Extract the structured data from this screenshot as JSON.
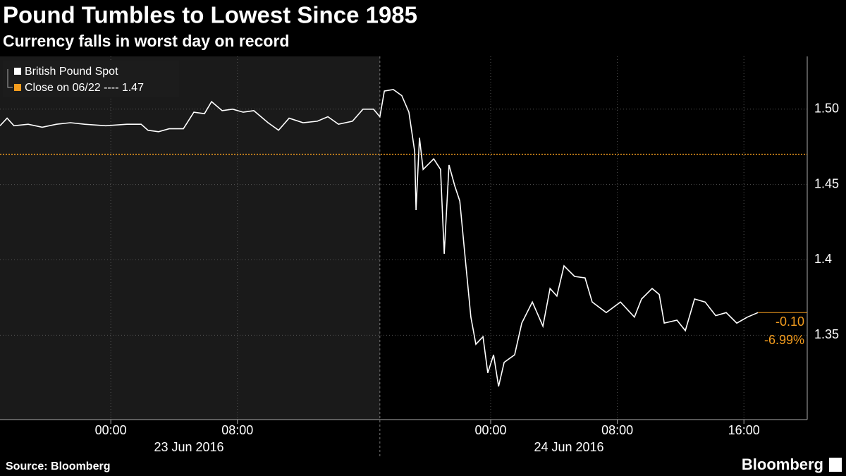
{
  "chart_data": {
    "type": "line",
    "title": "Pound Tumbles to Lowest Since 1985",
    "subtitle": "Currency falls in worst day on record",
    "source": "Source: Bloomberg",
    "brand": "Bloomberg",
    "series": [
      {
        "name": "British Pound Spot",
        "color": "#ffffff",
        "x": [
          "2016-06-22T17:00",
          "2016-06-22T17:27",
          "2016-06-22T17:53",
          "2016-06-22T18:47",
          "2016-06-22T19:40",
          "2016-06-22T20:34",
          "2016-06-22T21:27",
          "2016-06-22T22:21",
          "2016-06-22T23:41",
          "2016-06-23T01:01",
          "2016-06-23T01:55",
          "2016-06-23T02:21",
          "2016-06-23T03:01",
          "2016-06-23T03:41",
          "2016-06-23T04:35",
          "2016-06-23T05:15",
          "2016-06-23T05:55",
          "2016-06-23T06:22",
          "2016-06-23T07:02",
          "2016-06-23T07:42",
          "2016-06-23T08:22",
          "2016-06-23T09:02",
          "2016-06-23T09:56",
          "2016-06-23T10:36",
          "2016-06-23T11:16",
          "2016-06-23T12:09",
          "2016-06-23T13:03",
          "2016-06-23T13:43",
          "2016-06-23T14:23",
          "2016-06-23T15:16",
          "2016-06-23T15:56",
          "2016-06-23T16:36",
          "2016-06-23T17:00",
          "2016-06-23T17:17",
          "2016-06-23T17:51",
          "2016-06-23T18:23",
          "2016-06-23T18:50",
          "2016-06-23T19:12",
          "2016-06-23T19:17",
          "2016-06-23T19:30",
          "2016-06-23T19:44",
          "2016-06-23T20:24",
          "2016-06-23T20:50",
          "2016-06-23T21:04",
          "2016-06-23T21:22",
          "2016-06-23T21:44",
          "2016-06-23T22:03",
          "2016-06-23T22:24",
          "2016-06-23T22:45",
          "2016-06-23T23:04",
          "2016-06-23T23:31",
          "2016-06-23T23:49",
          "2016-06-24T00:11",
          "2016-06-24T00:30",
          "2016-06-24T00:51",
          "2016-06-24T01:31",
          "2016-06-24T01:58",
          "2016-06-24T02:38",
          "2016-06-24T03:18",
          "2016-06-24T03:45",
          "2016-06-24T04:11",
          "2016-06-24T04:38",
          "2016-06-24T05:18",
          "2016-06-24T05:58",
          "2016-06-24T06:25",
          "2016-06-24T07:18",
          "2016-06-24T08:12",
          "2016-06-24T09:05",
          "2016-06-24T09:32",
          "2016-06-24T10:12",
          "2016-06-24T10:39",
          "2016-06-24T10:58",
          "2016-06-24T11:46",
          "2016-06-24T12:18",
          "2016-06-24T12:53",
          "2016-06-24T13:33",
          "2016-06-24T14:13",
          "2016-06-24T14:53",
          "2016-06-24T15:33",
          "2016-06-24T16:13",
          "2016-06-24T16:53"
        ],
        "values": [
          1.489,
          1.494,
          1.489,
          1.49,
          1.488,
          1.49,
          1.491,
          1.49,
          1.489,
          1.49,
          1.49,
          1.486,
          1.485,
          1.487,
          1.487,
          1.498,
          1.497,
          1.505,
          1.499,
          1.5,
          1.498,
          1.499,
          1.491,
          1.486,
          1.494,
          1.491,
          1.492,
          1.495,
          1.49,
          1.492,
          1.5,
          1.5,
          1.495,
          1.512,
          1.513,
          1.509,
          1.498,
          1.472,
          1.433,
          1.481,
          1.46,
          1.467,
          1.46,
          1.404,
          1.463,
          1.449,
          1.439,
          1.4,
          1.362,
          1.344,
          1.349,
          1.325,
          1.337,
          1.316,
          1.332,
          1.337,
          1.358,
          1.372,
          1.356,
          1.381,
          1.376,
          1.396,
          1.389,
          1.388,
          1.372,
          1.365,
          1.372,
          1.362,
          1.374,
          1.381,
          1.377,
          1.358,
          1.36,
          1.353,
          1.374,
          1.372,
          1.363,
          1.365,
          1.358,
          1.362,
          1.365
        ]
      }
    ],
    "reference_line": {
      "name": "Close on 06/22 ---- 1.47",
      "value": 1.47,
      "color": "#f39c1e"
    },
    "change_labels": [
      "-0.10",
      "-6.99%"
    ],
    "session_break": "2016-06-23T17:00",
    "date_labels": [
      "23 Jun 2016",
      "24 Jun 2016"
    ],
    "xlim": [
      "2016-06-22T17:00",
      "2016-06-24T20:00"
    ],
    "xticks": [
      {
        "value": "2016-06-23T00:00",
        "label": "00:00"
      },
      {
        "value": "2016-06-23T08:00",
        "label": "08:00"
      },
      {
        "value": "2016-06-24T00:00",
        "label": "00:00"
      },
      {
        "value": "2016-06-24T08:00",
        "label": "08:00"
      },
      {
        "value": "2016-06-24T16:00",
        "label": "16:00"
      }
    ],
    "ylim": [
      1.294,
      1.535
    ],
    "yticks": [
      1.35,
      1.4,
      1.45,
      {
        "value": 1.5,
        "label": "1.50"
      }
    ],
    "grid": true
  }
}
